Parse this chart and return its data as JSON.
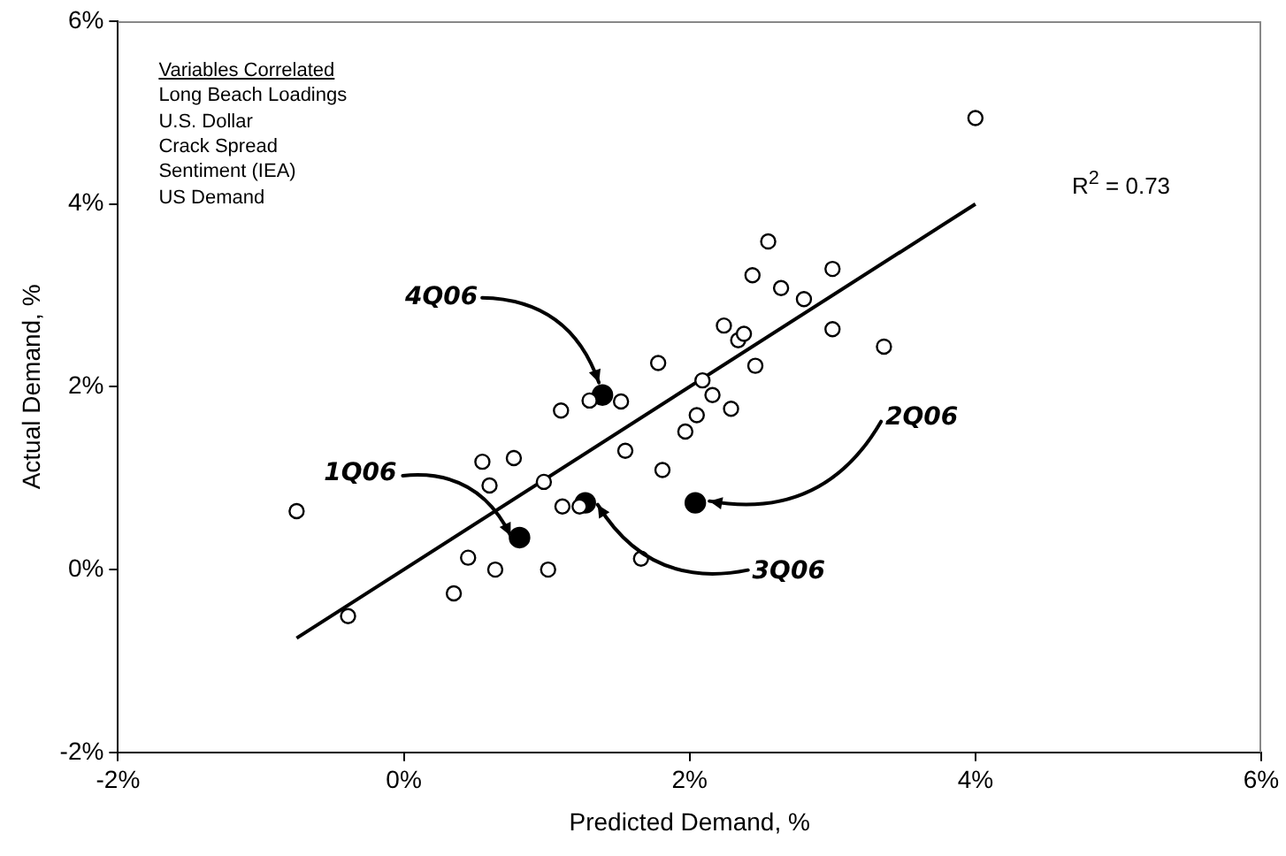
{
  "chart_data": {
    "type": "scatter",
    "xlabel": "Predicted Demand, %",
    "ylabel": "Actual Demand, %",
    "xlim": [
      -2,
      6
    ],
    "ylim": [
      -2,
      6
    ],
    "xticks": [
      {
        "value": -2,
        "label": "-2%"
      },
      {
        "value": 0,
        "label": "0%"
      },
      {
        "value": 2,
        "label": "2%"
      },
      {
        "value": 4,
        "label": "4%"
      },
      {
        "value": 6,
        "label": "6%"
      }
    ],
    "yticks": [
      {
        "value": -2,
        "label": "-2%"
      },
      {
        "value": 0,
        "label": "0%"
      },
      {
        "value": 2,
        "label": "2%"
      },
      {
        "value": 4,
        "label": "4%"
      },
      {
        "value": 6,
        "label": "6%"
      }
    ],
    "grid": false,
    "legend": false,
    "marker": "circle",
    "series": [
      {
        "color": "#000000",
        "x": [
          4.0,
          -0.75,
          -0.39,
          0.35,
          0.45,
          0.64,
          1.01,
          0.55,
          0.6,
          0.77,
          0.98,
          1.11,
          1.23,
          1.1,
          1.3,
          1.52,
          1.55,
          1.66,
          1.81,
          1.78,
          1.97,
          2.05,
          2.09,
          2.16,
          2.29,
          2.24,
          2.34,
          2.38,
          2.46,
          2.44,
          2.55,
          2.64,
          2.8,
          3.0,
          3.0,
          3.36
        ],
        "values": [
          4.94,
          0.64,
          -0.51,
          -0.26,
          0.13,
          0.0,
          0.0,
          1.18,
          0.92,
          1.22,
          0.96,
          0.69,
          0.69,
          1.74,
          1.85,
          1.84,
          1.3,
          0.12,
          1.09,
          2.26,
          1.51,
          1.69,
          2.07,
          1.91,
          1.76,
          2.67,
          2.51,
          2.58,
          2.23,
          3.22,
          3.59,
          3.08,
          2.96,
          3.29,
          2.63,
          2.44
        ]
      },
      {
        "color": "#000000",
        "x": [
          0.81,
          2.04,
          1.27,
          1.39
        ],
        "values": [
          0.35,
          0.73,
          0.73,
          1.91
        ]
      },
      {
        "type": "line",
        "color": "#000000",
        "marker": "none",
        "x": [
          -0.75,
          4.0
        ],
        "values": [
          -0.75,
          4.0
        ]
      }
    ],
    "annotations": [
      "Variables Correlated",
      "Long Beach Loadings",
      "U.S. Dollar",
      "Crack Spread",
      "Sentiment (IEA)",
      "US Demand",
      "R$^{2}$ = 0.73",
      {
        "text": "1Q06",
        "x": 0.81,
        "y": 0.35
      },
      {
        "text": "2Q06",
        "x": 2.04,
        "y": 0.73
      },
      {
        "text": "3Q06",
        "x": 1.27,
        "y": 0.73
      },
      {
        "text": "4Q06",
        "x": 1.39,
        "y": 1.91
      }
    ]
  }
}
